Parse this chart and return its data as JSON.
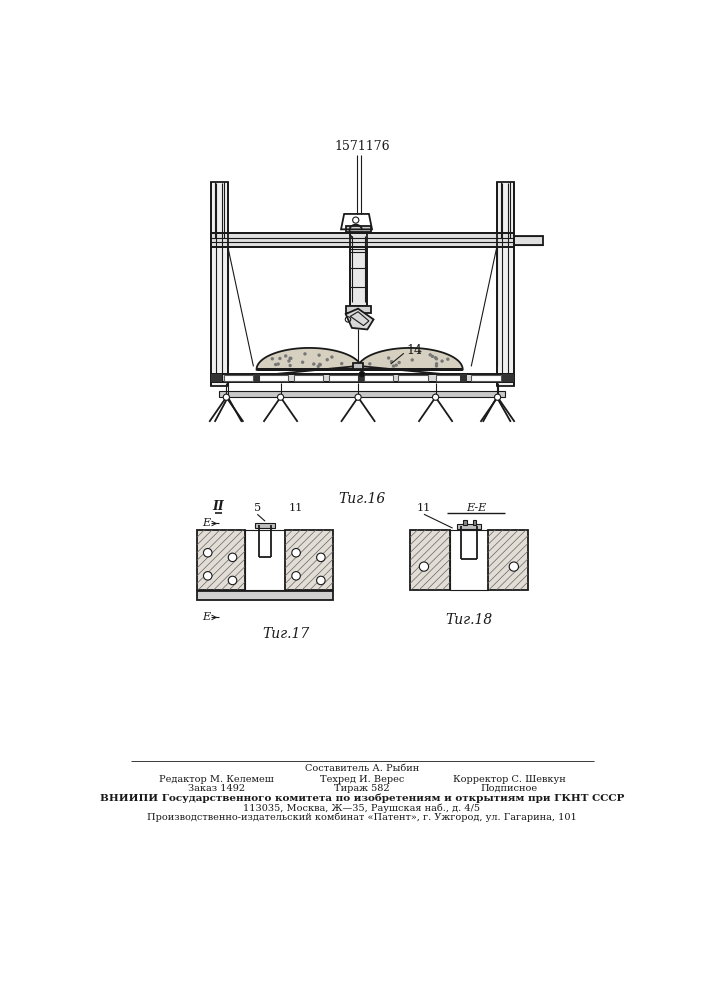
{
  "title": "1571176",
  "fig16_label": "Τиг.16",
  "fig17_label": "Τиг.17",
  "fig18_label": "Τиг.18",
  "line_color": "#1a1a1a",
  "label_14": "14",
  "label_5": "5",
  "label_11a": "11",
  "label_11b": "11",
  "label_II": "II",
  "label_E1": "E",
  "label_E2": "E",
  "label_EE": "E-E",
  "footer_col1_line1": "Редактор М. Келемеш",
  "footer_col1_line2": "Заказ 1492",
  "footer_col2_line1": "Техред И. Верес",
  "footer_col2_line2": "Тираж 582",
  "footer_col3_line1": "Корректор С. Шевкун",
  "footer_col3_line2": "Подписное",
  "footer_center": "Составитель А. Рыбин",
  "footer_vnipi": "ВНИИПИ Государственного комитета по изобретениям и открытиям при ГКНТ СССР",
  "footer_addr1": "113035, Москва, Ж—35, Раушская наб., д. 4/5",
  "footer_addr2": "Производственно-издательский комбинат «Патент», г. Ужгород, ул. Гагарина, 101"
}
